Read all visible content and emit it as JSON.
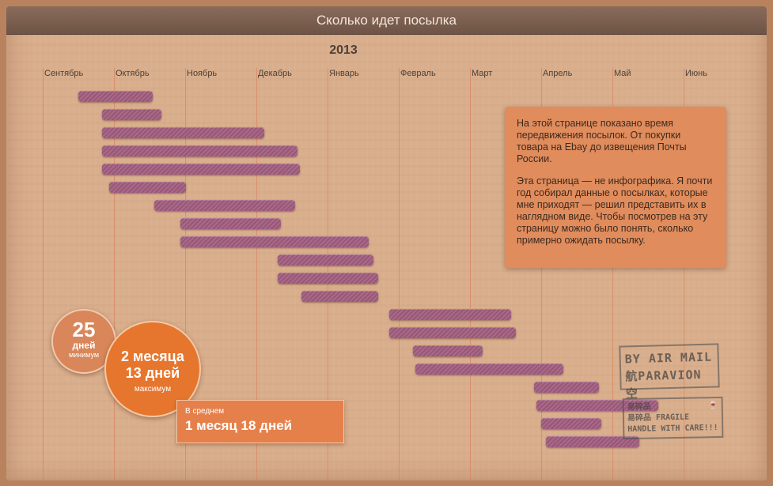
{
  "header": {
    "title": "Сколько идет посылка"
  },
  "timeline": {
    "year_label": "2013",
    "months": [
      "Сентябрь",
      "Октябрь",
      "Ноябрь",
      "Декабрь",
      "Январь",
      "Февраль",
      "Март",
      "Апрель",
      "Май",
      "Июнь"
    ],
    "bar_color": "#9a5677"
  },
  "info": {
    "paragraph1": "На этой странице показано время передвижения посылок. От покупки товара на Ebay до извещения Почты России.",
    "paragraph2": "Эта страница — не инфографика. Я почти год собирал данные о посылках, которые мне приходят — решил представить их в наглядном виде. Чтобы посмотрев на эту страницу можно было понять, сколько примерно ожидать посылку."
  },
  "stats": {
    "min_value": "25",
    "min_unit": "дней",
    "min_label": "минимум",
    "max_line1": "2 месяца",
    "max_line2": "13 дней",
    "max_label": "максимум",
    "avg_label": "В среднем",
    "avg_value": "1 месяц 18 дней"
  },
  "stamps": {
    "air_line1": "BY AIR MAIL",
    "air_line2": "航PARAVION空",
    "fragile_line1": "易碎品",
    "fragile_line2": "易碎品 FRAGILE",
    "fragile_line3": "HANDLE WITH CARE!!!"
  },
  "colors": {
    "accent_orange": "#e6762d",
    "info_box": "#e08c5c",
    "title_bar": "#7a5e50"
  }
}
